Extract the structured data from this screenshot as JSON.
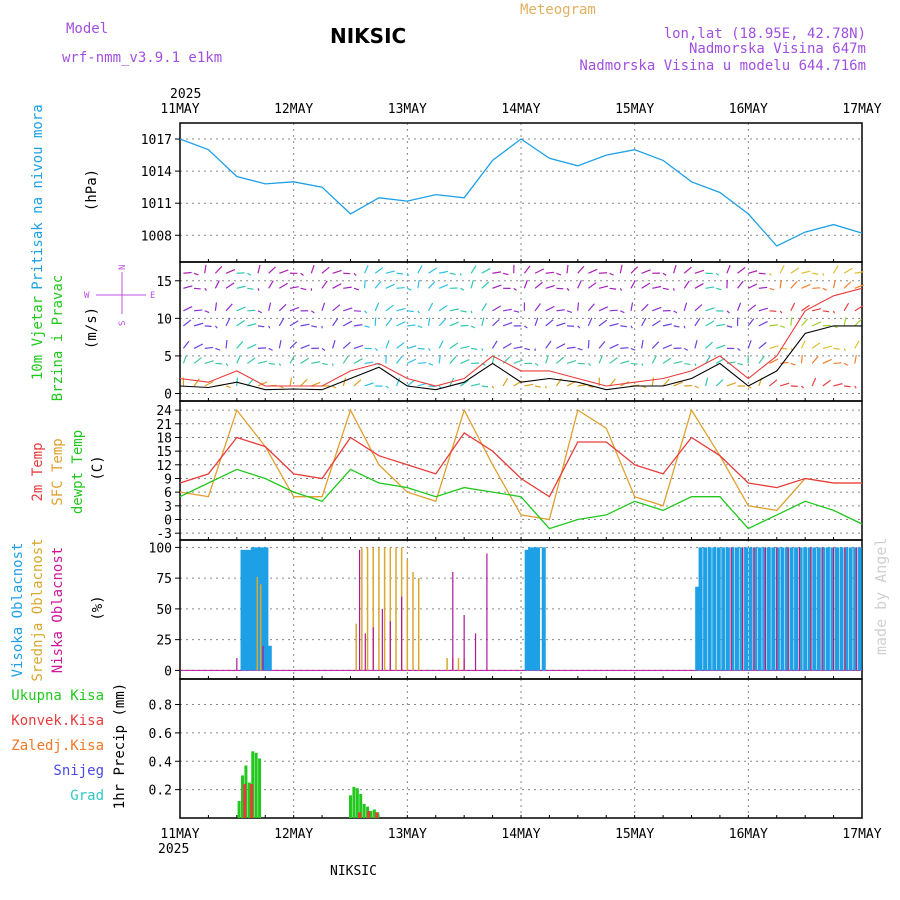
{
  "header": {
    "model_label": "Model",
    "model_name": "wrf-nmm_v3.9.1 e1km",
    "station": "NIKSIC",
    "chart_kind": "Meteogram",
    "coords": "lon,lat (18.95E, 42.78N)",
    "elevation": "Nadmorska Visina 647m",
    "model_elevation": "Nadmorska Visina u modelu 644.716m",
    "credit": "made by Angel",
    "footer_station": "NIKSIC"
  },
  "time_axis": {
    "year": "2025",
    "days": [
      "11MAY",
      "12MAY",
      "13MAY",
      "14MAY",
      "15MAY",
      "16MAY",
      "17MAY"
    ]
  },
  "compass": {
    "n": "N",
    "w": "W",
    "e": "E",
    "s": "S"
  },
  "colors": {
    "pressure": "#1ea0e6",
    "temp2m": "#e83c3c",
    "sfc_temp": "#e0a030",
    "dewpt": "#22c81e",
    "high_cloud": "#1ea0e6",
    "mid_cloud": "#d8a830",
    "low_cloud": "#b0169c",
    "total_precip": "#22c81e",
    "conv_precip": "#e83c3c",
    "frz_precip": "#f07828",
    "snow": "#4a4ae8",
    "graupel": "#30c8c8",
    "wind_speed": "#000000",
    "gust": "#e83c3c"
  },
  "chart_data": [
    {
      "type": "line",
      "panel": "pressure",
      "ylabel_lines": [
        "Pritisak na nivou mora",
        "(hPa)"
      ],
      "yticks": [
        "1008",
        "1011",
        "1014",
        "1017"
      ],
      "ylim": [
        1005.5,
        1018.5
      ],
      "x_unit": "days from 11MAY 00UTC",
      "x": [
        0,
        0.25,
        0.5,
        0.75,
        1,
        1.25,
        1.5,
        1.75,
        2,
        2.25,
        2.5,
        2.75,
        3,
        3.25,
        3.5,
        3.75,
        4,
        4.25,
        4.5,
        4.75,
        5,
        5.25,
        5.5,
        5.75,
        6
      ],
      "values": [
        1017,
        1016,
        1013.5,
        1012.8,
        1013,
        1012.5,
        1010,
        1011.5,
        1011.2,
        1011.8,
        1011.5,
        1015,
        1017,
        1015.2,
        1014.5,
        1015.5,
        1016,
        1015,
        1013,
        1012,
        1010,
        1007,
        1008.3,
        1009,
        1008.2
      ]
    },
    {
      "type": "line",
      "panel": "wind",
      "ylabel_lines": [
        "10m Vjetar",
        "Brzina i Pravac",
        "(m/s)"
      ],
      "yticks": [
        "0",
        "5",
        "10",
        "15"
      ],
      "ylim": [
        -1,
        17.5
      ],
      "x": [
        0,
        0.25,
        0.5,
        0.75,
        1,
        1.25,
        1.5,
        1.75,
        2,
        2.25,
        2.5,
        2.75,
        3,
        3.25,
        3.5,
        3.75,
        4,
        4.25,
        4.5,
        4.75,
        5,
        5.25,
        5.5,
        5.75,
        6
      ],
      "series": [
        {
          "key": "speed",
          "values": [
            1,
            0.8,
            1.5,
            0.5,
            0.6,
            0.5,
            2,
            3.5,
            1,
            0.5,
            1.5,
            4,
            1.5,
            2,
            1.5,
            0.5,
            1,
            1,
            2,
            4,
            1,
            3,
            8,
            9,
            9
          ]
        },
        {
          "key": "gust",
          "values": [
            2,
            1.5,
            3,
            1,
            1,
            1,
            3,
            4,
            2,
            1,
            2,
            5,
            3,
            3,
            2,
            1,
            1.5,
            2,
            3,
            5,
            2,
            5,
            11,
            13,
            14
          ]
        }
      ],
      "wind_barb_rows": [
        1,
        4,
        6,
        9,
        11,
        14,
        16
      ]
    },
    {
      "type": "line",
      "panel": "temperature",
      "ylabel_lines": [
        "2m Temp",
        "SFC Temp",
        "dewpt Temp",
        "(C)"
      ],
      "yticks": [
        "-3",
        "0",
        "3",
        "6",
        "9",
        "12",
        "15",
        "18",
        "21",
        "24"
      ],
      "ylim": [
        -4.5,
        26
      ],
      "x": [
        0,
        0.25,
        0.5,
        0.75,
        1,
        1.25,
        1.5,
        1.75,
        2,
        2.25,
        2.5,
        2.75,
        3,
        3.25,
        3.5,
        3.75,
        4,
        4.25,
        4.5,
        4.75,
        5,
        5.25,
        5.5,
        5.75,
        6
      ],
      "series": [
        {
          "key": "t2m",
          "values": [
            8,
            10,
            18,
            16,
            10,
            9,
            18,
            14,
            12,
            10,
            19,
            15,
            9,
            5,
            17,
            17,
            12,
            10,
            18,
            14,
            8,
            7,
            9,
            8,
            8
          ]
        },
        {
          "key": "sfc",
          "values": [
            6,
            5,
            24,
            16,
            5,
            5,
            24,
            12,
            6,
            4,
            24,
            12,
            1,
            0,
            24,
            20,
            5,
            3,
            24,
            14,
            3,
            2,
            9,
            8,
            8
          ]
        },
        {
          "key": "dewpt",
          "values": [
            5,
            8,
            11,
            9,
            6,
            4,
            11,
            8,
            7,
            5,
            7,
            6,
            5,
            -2,
            0,
            1,
            4,
            2,
            5,
            5,
            -2,
            1,
            4,
            2,
            -1
          ]
        }
      ]
    },
    {
      "type": "bar",
      "panel": "cloudiness",
      "ylabel_lines": [
        "Visoka Oblacnost",
        "Srednja Oblacnost",
        "Niska Oblacnost",
        "(%)"
      ],
      "yticks": [
        "0",
        "25",
        "50",
        "75",
        "100"
      ],
      "ylim": [
        -7,
        106
      ],
      "x_unit": "days from 11MAY 00UTC",
      "series": [
        {
          "key": "high",
          "x": [
            0.55,
            0.58,
            0.61,
            0.64,
            0.67,
            0.7,
            0.73,
            0.76,
            0.79,
            3.05,
            3.08,
            3.11,
            3.14,
            3.15,
            3.2,
            4.55,
            4.58,
            4.62,
            4.66,
            4.7,
            4.74,
            4.78,
            4.82,
            4.86,
            4.9,
            4.94,
            4.98,
            5.02,
            5.06,
            5.1,
            5.14,
            5.18,
            5.22,
            5.26,
            5.3,
            5.34,
            5.38,
            5.42,
            5.46,
            5.5,
            5.54,
            5.58,
            5.62,
            5.66,
            5.7,
            5.74,
            5.78,
            5.82,
            5.86,
            5.9,
            5.94,
            5.98
          ],
          "values": [
            98,
            98,
            98,
            100,
            100,
            100,
            100,
            100,
            20,
            98,
            100,
            100,
            100,
            100,
            100,
            68,
            100,
            100,
            100,
            100,
            100,
            100,
            100,
            100,
            100,
            100,
            100,
            100,
            100,
            100,
            100,
            100,
            100,
            100,
            100,
            100,
            100,
            100,
            100,
            100,
            100,
            100,
            100,
            100,
            100,
            100,
            100,
            100,
            100,
            100,
            100,
            100
          ]
        },
        {
          "key": "mid",
          "x": [
            0.68,
            0.71,
            1.55,
            1.6,
            1.65,
            1.7,
            1.75,
            1.8,
            1.85,
            1.9,
            1.95,
            2.0,
            2.05,
            2.1,
            2.35,
            2.4,
            2.45,
            2.5,
            4.85,
            4.95,
            5.05,
            5.15,
            5.25,
            5.35,
            5.45,
            5.55,
            5.65,
            5.75,
            5.85,
            5.95
          ],
          "values": [
            76,
            70,
            38,
            100,
            100,
            100,
            100,
            100,
            100,
            100,
            100,
            90,
            80,
            75,
            10,
            10,
            10,
            10,
            100,
            100,
            100,
            100,
            100,
            100,
            100,
            100,
            100,
            100,
            100,
            100
          ]
        },
        {
          "key": "low",
          "x": [
            0.5,
            0.73,
            1.58,
            1.63,
            1.7,
            1.78,
            1.85,
            1.95,
            2.4,
            2.5,
            2.6,
            2.7,
            4.85,
            4.95,
            5.05,
            5.15,
            5.25,
            5.35,
            5.45,
            5.55,
            5.65,
            5.75,
            5.85,
            5.95
          ],
          "values": [
            10,
            20,
            98,
            30,
            35,
            50,
            40,
            60,
            80,
            45,
            30,
            95,
            100,
            100,
            100,
            100,
            100,
            100,
            100,
            100,
            100,
            100,
            100,
            100
          ]
        }
      ]
    },
    {
      "type": "bar",
      "panel": "precipitation",
      "ylabel_lines": [
        "1hr Precip (mm)"
      ],
      "legend": [
        "Ukupna Kisa",
        "Konvek.Kisa",
        "Zaledj.Kisa",
        "Snijeg",
        "Grad"
      ],
      "yticks": [
        "0.2",
        "0.4",
        "0.6",
        "0.8"
      ],
      "ylim": [
        0,
        0.98
      ],
      "x_unit": "days from 11MAY 00UTC",
      "series": [
        {
          "key": "total",
          "x": [
            0.52,
            0.55,
            0.58,
            0.61,
            0.64,
            0.67,
            0.7,
            1.5,
            1.53,
            1.56,
            1.59,
            1.62,
            1.65,
            1.68,
            1.71,
            1.74
          ],
          "values": [
            0.12,
            0.3,
            0.37,
            0.25,
            0.47,
            0.46,
            0.42,
            0.16,
            0.22,
            0.21,
            0.17,
            0.1,
            0.08,
            0.05,
            0.06,
            0.04
          ]
        },
        {
          "key": "conv",
          "x": [
            0.57,
            0.63,
            1.58,
            1.66,
            1.73
          ],
          "values": [
            0.24,
            0.24,
            0.04,
            0.05,
            0.04
          ]
        }
      ]
    }
  ]
}
